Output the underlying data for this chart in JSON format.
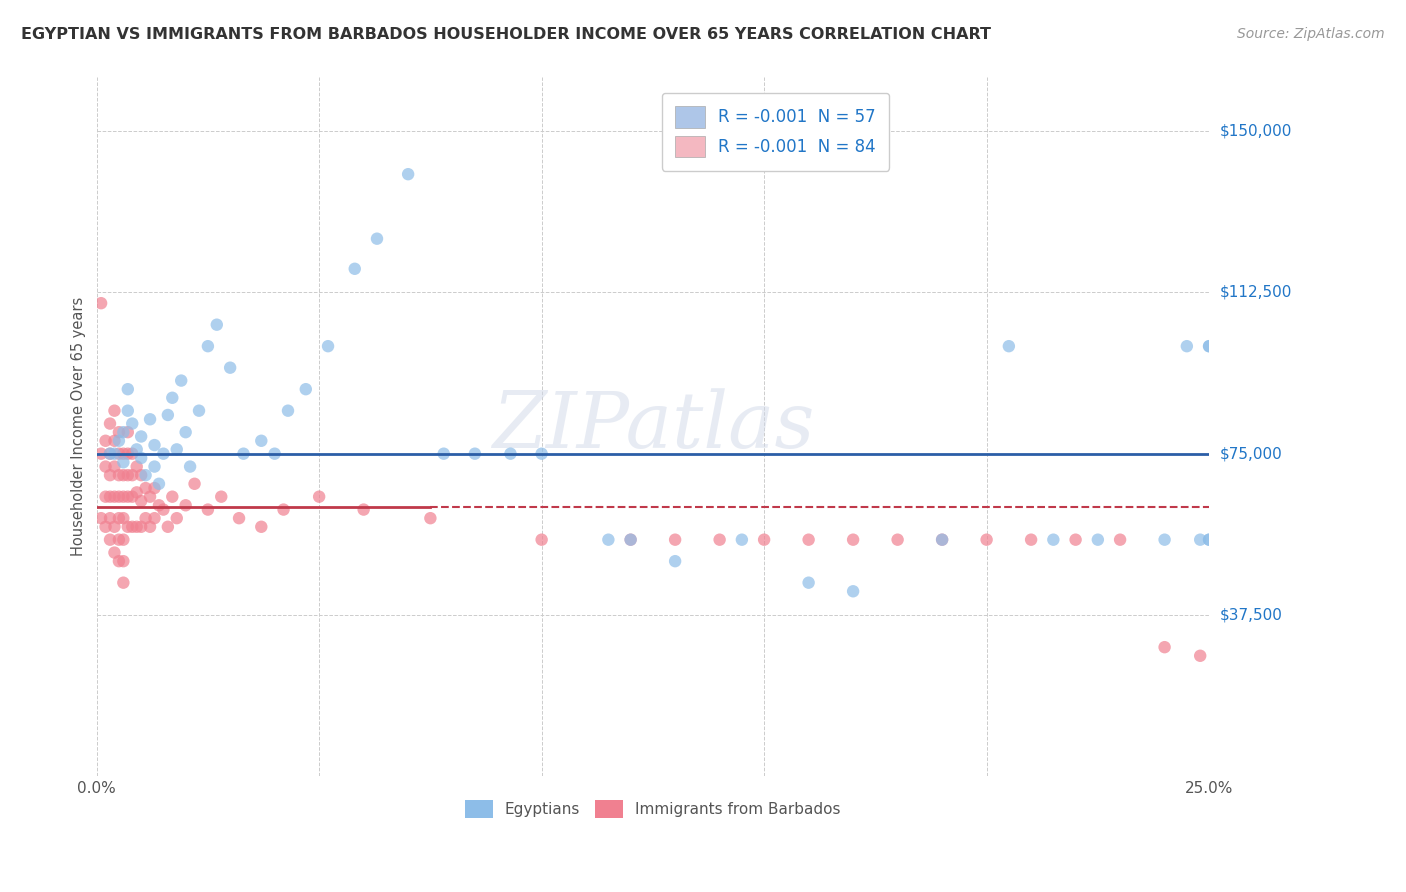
{
  "title": "EGYPTIAN VS IMMIGRANTS FROM BARBADOS HOUSEHOLDER INCOME OVER 65 YEARS CORRELATION CHART",
  "source": "Source: ZipAtlas.com",
  "ylabel_label": "Householder Income Over 65 years",
  "xlim": [
    0.0,
    0.25
  ],
  "ylim": [
    0,
    162500
  ],
  "xticks": [
    0.0,
    0.05,
    0.1,
    0.15,
    0.2,
    0.25
  ],
  "ytick_values": [
    0,
    37500,
    75000,
    112500,
    150000
  ],
  "yticklabels": [
    "",
    "$37,500",
    "$75,000",
    "$112,500",
    "$150,000"
  ],
  "legend_items": [
    {
      "label": "R = -0.001  N = 57",
      "facecolor": "#aec6e8",
      "text_color": "#2176c7"
    },
    {
      "label": "R = -0.001  N = 84",
      "facecolor": "#f4b8c1",
      "text_color": "#2176c7"
    }
  ],
  "trend_line_egyptian_y": 75000,
  "trend_line_egyptian_color": "#2b5ea7",
  "trend_line_barbados_y": 62500,
  "trend_line_barbados_color": "#c0394a",
  "trend_line_barbados_solid_end": 0.075,
  "watermark": "ZIPatlas",
  "background_color": "#ffffff",
  "grid_color": "#cccccc",
  "egyptians_color": "#8dbde8",
  "barbados_color": "#f08090",
  "egyptians_x": [
    0.003,
    0.004,
    0.005,
    0.006,
    0.006,
    0.007,
    0.007,
    0.008,
    0.009,
    0.01,
    0.01,
    0.011,
    0.012,
    0.013,
    0.013,
    0.014,
    0.015,
    0.016,
    0.017,
    0.018,
    0.019,
    0.02,
    0.021,
    0.023,
    0.025,
    0.027,
    0.03,
    0.033,
    0.037,
    0.04,
    0.043,
    0.047,
    0.052,
    0.058,
    0.063,
    0.07,
    0.078,
    0.085,
    0.093,
    0.1,
    0.115,
    0.12,
    0.13,
    0.145,
    0.16,
    0.17,
    0.19,
    0.205,
    0.215,
    0.225,
    0.24,
    0.245,
    0.248,
    0.25,
    0.25,
    0.25,
    0.25
  ],
  "egyptians_y": [
    75000,
    75000,
    78000,
    80000,
    73000,
    85000,
    90000,
    82000,
    76000,
    74000,
    79000,
    70000,
    83000,
    72000,
    77000,
    68000,
    75000,
    84000,
    88000,
    76000,
    92000,
    80000,
    72000,
    85000,
    100000,
    105000,
    95000,
    75000,
    78000,
    75000,
    85000,
    90000,
    100000,
    118000,
    125000,
    140000,
    75000,
    75000,
    75000,
    75000,
    55000,
    55000,
    50000,
    55000,
    45000,
    43000,
    55000,
    100000,
    55000,
    55000,
    55000,
    100000,
    55000,
    100000,
    100000,
    55000,
    55000
  ],
  "barbados_x": [
    0.001,
    0.001,
    0.001,
    0.002,
    0.002,
    0.002,
    0.002,
    0.003,
    0.003,
    0.003,
    0.003,
    0.003,
    0.003,
    0.004,
    0.004,
    0.004,
    0.004,
    0.004,
    0.004,
    0.005,
    0.005,
    0.005,
    0.005,
    0.005,
    0.005,
    0.005,
    0.006,
    0.006,
    0.006,
    0.006,
    0.006,
    0.006,
    0.006,
    0.007,
    0.007,
    0.007,
    0.007,
    0.007,
    0.008,
    0.008,
    0.008,
    0.008,
    0.009,
    0.009,
    0.009,
    0.01,
    0.01,
    0.01,
    0.011,
    0.011,
    0.012,
    0.012,
    0.013,
    0.013,
    0.014,
    0.015,
    0.016,
    0.017,
    0.018,
    0.02,
    0.022,
    0.025,
    0.028,
    0.032,
    0.037,
    0.042,
    0.05,
    0.06,
    0.075,
    0.1,
    0.12,
    0.13,
    0.14,
    0.15,
    0.16,
    0.17,
    0.18,
    0.19,
    0.2,
    0.21,
    0.22,
    0.23,
    0.24,
    0.248
  ],
  "barbados_y": [
    110000,
    75000,
    60000,
    78000,
    72000,
    65000,
    58000,
    82000,
    75000,
    70000,
    65000,
    60000,
    55000,
    85000,
    78000,
    72000,
    65000,
    58000,
    52000,
    80000,
    75000,
    70000,
    65000,
    60000,
    55000,
    50000,
    75000,
    70000,
    65000,
    60000,
    55000,
    50000,
    45000,
    80000,
    75000,
    70000,
    65000,
    58000,
    75000,
    70000,
    65000,
    58000,
    72000,
    66000,
    58000,
    70000,
    64000,
    58000,
    67000,
    60000,
    65000,
    58000,
    67000,
    60000,
    63000,
    62000,
    58000,
    65000,
    60000,
    63000,
    68000,
    62000,
    65000,
    60000,
    58000,
    62000,
    65000,
    62000,
    60000,
    55000,
    55000,
    55000,
    55000,
    55000,
    55000,
    55000,
    55000,
    55000,
    55000,
    55000,
    55000,
    55000,
    30000,
    28000
  ]
}
